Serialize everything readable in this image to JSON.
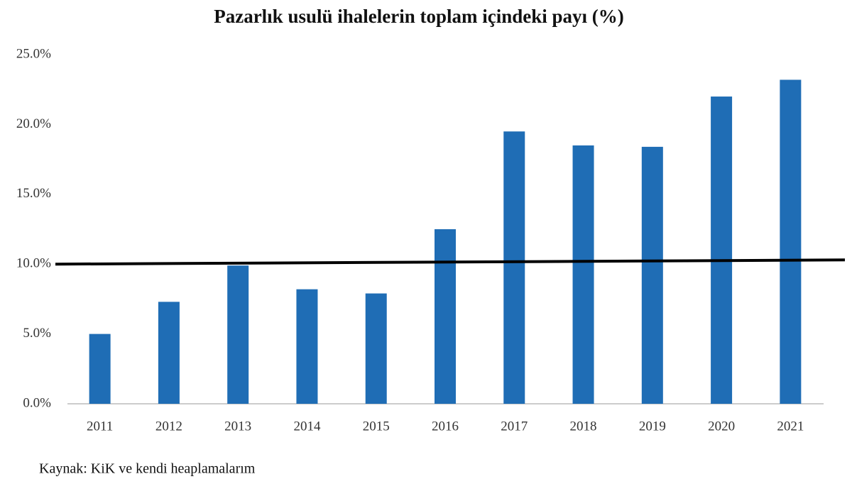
{
  "chart_data": {
    "type": "bar",
    "title": "Pazarlık usulü ihalelerin toplam içindeki payı (%)",
    "source": "Kaynak: KiK ve kendi heaplamalarım",
    "categories": [
      "2011",
      "2012",
      "2013",
      "2014",
      "2015",
      "2016",
      "2017",
      "2018",
      "2019",
      "2020",
      "2021"
    ],
    "values": [
      5.0,
      7.3,
      9.9,
      8.2,
      7.9,
      12.5,
      19.5,
      18.5,
      18.4,
      22.0,
      23.2
    ],
    "color": "#1f6db5",
    "ylim": [
      0,
      25
    ],
    "yticks": [
      {
        "value": 0,
        "label": "0.0%"
      },
      {
        "value": 5,
        "label": "5.0%"
      },
      {
        "value": 10,
        "label": "10.0%"
      },
      {
        "value": 15,
        "label": "15.0%"
      },
      {
        "value": 20,
        "label": "20.0%"
      },
      {
        "value": 25,
        "label": "25.0%"
      }
    ],
    "grid": false,
    "reference_line": {
      "start": 10.0,
      "end": 10.3,
      "color": "#000000"
    }
  }
}
